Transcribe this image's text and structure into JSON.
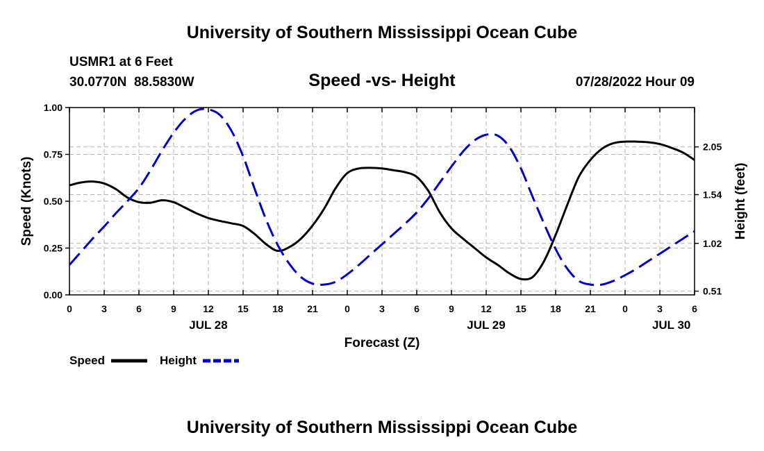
{
  "header": {
    "title": "University of Southern Mississippi Ocean Cube",
    "station": "USMR1 at 6 Feet",
    "location": "30.0770N  88.5830W",
    "chart_title": "Speed -vs- Height",
    "timestamp": "07/28/2022 Hour 09"
  },
  "footer": {
    "title": "University of Southern Mississippi Ocean Cube"
  },
  "legend": {
    "speed_label": "Speed",
    "height_label": "Height"
  },
  "colors": {
    "speed": "#000000",
    "height": "#0000cc",
    "grid": "#b4b4b4"
  },
  "chart_data": {
    "type": "line",
    "title": "Speed -vs- Height",
    "xlabel": "Forecast (Z)",
    "ylabel": "Speed (Knots)",
    "y2label": "Height (feet)",
    "x_range_hours": [
      0,
      54
    ],
    "x_ticks": [
      {
        "h": 0,
        "label": "0"
      },
      {
        "h": 3,
        "label": "3"
      },
      {
        "h": 6,
        "label": "6"
      },
      {
        "h": 9,
        "label": "9"
      },
      {
        "h": 12,
        "label": "12"
      },
      {
        "h": 15,
        "label": "15"
      },
      {
        "h": 18,
        "label": "18"
      },
      {
        "h": 21,
        "label": "21"
      },
      {
        "h": 24,
        "label": "0"
      },
      {
        "h": 27,
        "label": "3"
      },
      {
        "h": 30,
        "label": "6"
      },
      {
        "h": 33,
        "label": "9"
      },
      {
        "h": 36,
        "label": "12"
      },
      {
        "h": 39,
        "label": "15"
      },
      {
        "h": 42,
        "label": "18"
      },
      {
        "h": 45,
        "label": "21"
      },
      {
        "h": 48,
        "label": "0"
      },
      {
        "h": 51,
        "label": "3"
      },
      {
        "h": 54,
        "label": "6"
      }
    ],
    "date_labels": [
      {
        "h": 12,
        "label": "JUL 28"
      },
      {
        "h": 36,
        "label": "JUL 29"
      },
      {
        "h": 52,
        "label": "JUL 30"
      }
    ],
    "ylim": [
      0,
      1
    ],
    "y_ticks": [
      "0.00",
      "0.25",
      "0.50",
      "0.75",
      "1.00"
    ],
    "y2lim": [
      0.47,
      2.47
    ],
    "y2_ticks": [
      "0.51",
      "1.02",
      "1.54",
      "2.05"
    ],
    "series": [
      {
        "name": "Speed",
        "axis": "left",
        "style": "solid",
        "points": [
          [
            0,
            0.585
          ],
          [
            1,
            0.6
          ],
          [
            2,
            0.605
          ],
          [
            3,
            0.595
          ],
          [
            4,
            0.565
          ],
          [
            5,
            0.52
          ],
          [
            6,
            0.495
          ],
          [
            7,
            0.492
          ],
          [
            8,
            0.505
          ],
          [
            9,
            0.495
          ],
          [
            10,
            0.465
          ],
          [
            11,
            0.435
          ],
          [
            12,
            0.41
          ],
          [
            13,
            0.395
          ],
          [
            14,
            0.382
          ],
          [
            15,
            0.368
          ],
          [
            16,
            0.325
          ],
          [
            17,
            0.27
          ],
          [
            18,
            0.235
          ],
          [
            19,
            0.255
          ],
          [
            20,
            0.3
          ],
          [
            21,
            0.37
          ],
          [
            22,
            0.46
          ],
          [
            23,
            0.57
          ],
          [
            24,
            0.65
          ],
          [
            25,
            0.675
          ],
          [
            26,
            0.678
          ],
          [
            27,
            0.675
          ],
          [
            28,
            0.665
          ],
          [
            29,
            0.655
          ],
          [
            30,
            0.63
          ],
          [
            31,
            0.555
          ],
          [
            32,
            0.44
          ],
          [
            33,
            0.355
          ],
          [
            34,
            0.3
          ],
          [
            35,
            0.25
          ],
          [
            36,
            0.2
          ],
          [
            37,
            0.16
          ],
          [
            38,
            0.115
          ],
          [
            39,
            0.085
          ],
          [
            40,
            0.095
          ],
          [
            41,
            0.18
          ],
          [
            42,
            0.32
          ],
          [
            43,
            0.48
          ],
          [
            44,
            0.63
          ],
          [
            45,
            0.72
          ],
          [
            46,
            0.78
          ],
          [
            47,
            0.81
          ],
          [
            48,
            0.818
          ],
          [
            49,
            0.818
          ],
          [
            50,
            0.815
          ],
          [
            51,
            0.805
          ],
          [
            52,
            0.785
          ],
          [
            53,
            0.76
          ],
          [
            54,
            0.72
          ]
        ]
      },
      {
        "name": "Height",
        "axis": "right",
        "style": "dashed",
        "points": [
          [
            0,
            0.79
          ],
          [
            1,
            0.93
          ],
          [
            2,
            1.07
          ],
          [
            3,
            1.2
          ],
          [
            4,
            1.34
          ],
          [
            5,
            1.47
          ],
          [
            6,
            1.61
          ],
          [
            7,
            1.8
          ],
          [
            8,
            2.01
          ],
          [
            9,
            2.2
          ],
          [
            10,
            2.35
          ],
          [
            11,
            2.44
          ],
          [
            12,
            2.45
          ],
          [
            13,
            2.39
          ],
          [
            14,
            2.22
          ],
          [
            15,
            1.95
          ],
          [
            16,
            1.6
          ],
          [
            17,
            1.27
          ],
          [
            18,
            1.0
          ],
          [
            19,
            0.8
          ],
          [
            20,
            0.66
          ],
          [
            21,
            0.59
          ],
          [
            22,
            0.58
          ],
          [
            23,
            0.61
          ],
          [
            24,
            0.69
          ],
          [
            25,
            0.79
          ],
          [
            26,
            0.9
          ],
          [
            27,
            1.01
          ],
          [
            28,
            1.12
          ],
          [
            29,
            1.23
          ],
          [
            30,
            1.35
          ],
          [
            31,
            1.5
          ],
          [
            32,
            1.67
          ],
          [
            33,
            1.84
          ],
          [
            34,
            2.0
          ],
          [
            35,
            2.12
          ],
          [
            36,
            2.18
          ],
          [
            37,
            2.17
          ],
          [
            38,
            2.05
          ],
          [
            39,
            1.82
          ],
          [
            40,
            1.52
          ],
          [
            41,
            1.23
          ],
          [
            42,
            0.96
          ],
          [
            43,
            0.75
          ],
          [
            44,
            0.62
          ],
          [
            45,
            0.58
          ],
          [
            46,
            0.58
          ],
          [
            47,
            0.62
          ],
          [
            48,
            0.68
          ],
          [
            49,
            0.75
          ],
          [
            50,
            0.83
          ],
          [
            51,
            0.91
          ],
          [
            52,
            0.99
          ],
          [
            53,
            1.07
          ],
          [
            54,
            1.15
          ]
        ]
      }
    ]
  }
}
